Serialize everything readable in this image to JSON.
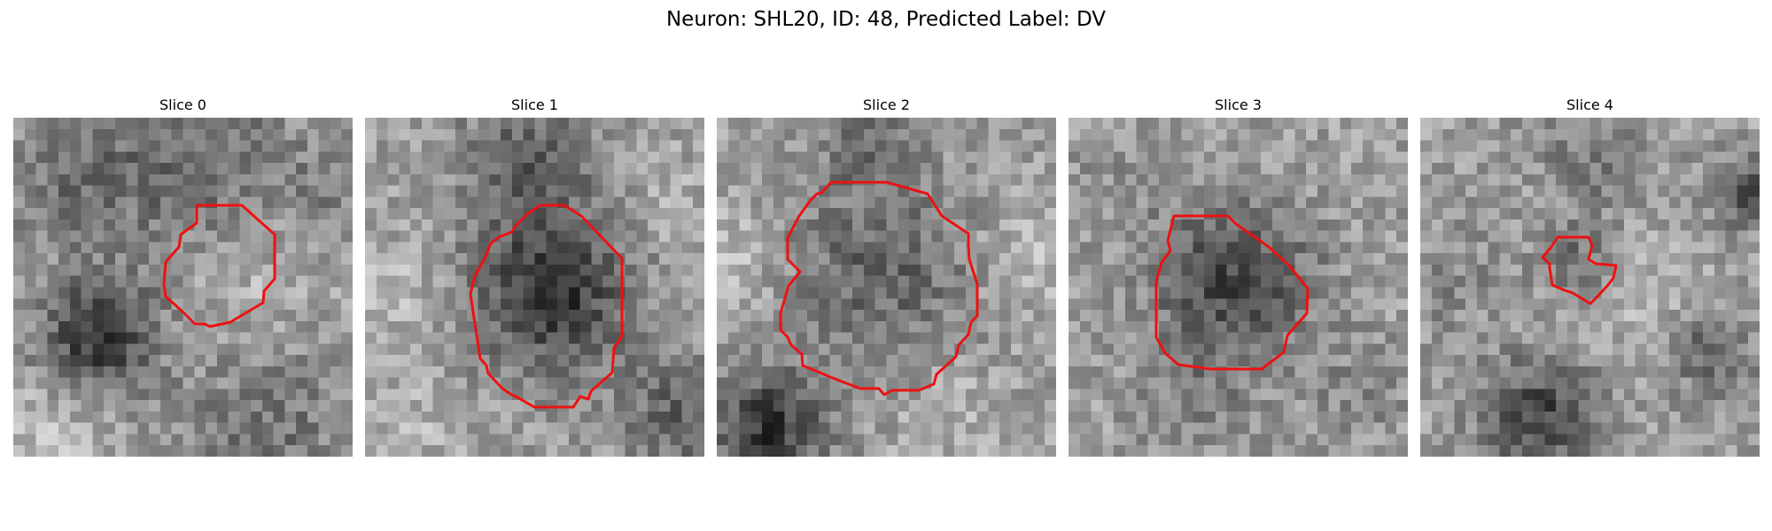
{
  "figure": {
    "title": "Neuron: SHL20, ID: 48, Predicted Label: DV",
    "contour_color": "#ee1111"
  },
  "panels": [
    {
      "title": "Slice 0"
    },
    {
      "title": "Slice 1"
    },
    {
      "title": "Slice 2"
    },
    {
      "title": "Slice 3"
    },
    {
      "title": "Slice 4"
    }
  ]
}
